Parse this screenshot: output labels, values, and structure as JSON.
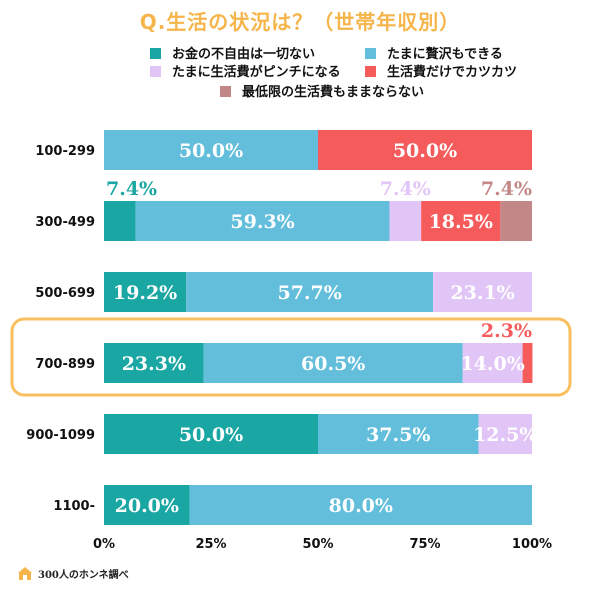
{
  "title": "Q.生活の状況は？（世帯年収別）",
  "footer": {
    "source": "300人のホンネ調べ",
    "logo_icon": "house-book-icon"
  },
  "colors": {
    "s0": "#1aa6a2",
    "s1": "#62bedb",
    "s2": "#e1c5f7",
    "s3": "#f65b5c",
    "s4": "#c28786",
    "highlight": "#f9bf5e"
  },
  "chart_data": {
    "type": "bar",
    "orientation": "horizontal",
    "stacked": true,
    "categories": [
      "100-299",
      "300-499",
      "500-699",
      "700-899",
      "900-1099",
      "1100-"
    ],
    "series": [
      {
        "name": "お金の不自由は一切ない",
        "values": [
          0,
          7.4,
          19.2,
          23.3,
          50.0,
          20.0
        ]
      },
      {
        "name": "たまに贅沢もできる",
        "values": [
          50.0,
          59.3,
          57.7,
          60.5,
          37.5,
          80.0
        ]
      },
      {
        "name": "たまに生活費がピンチになる",
        "values": [
          0,
          7.4,
          23.1,
          14.0,
          12.5,
          0
        ]
      },
      {
        "name": "生活費だけでカツカツ",
        "values": [
          50.0,
          18.5,
          0,
          2.3,
          0,
          0
        ]
      },
      {
        "name": "最低限の生活費もままならない",
        "values": [
          0,
          7.4,
          0,
          0,
          0,
          0
        ]
      }
    ],
    "data_labels": [
      [
        "",
        "50.0%",
        "",
        "50.0%",
        ""
      ],
      [
        "7.4%",
        "59.3%",
        "7.4%",
        "18.5%",
        "7.4%"
      ],
      [
        "19.2%",
        "57.7%",
        "23.1%",
        "",
        ""
      ],
      [
        "23.3%",
        "60.5%",
        "14.0%",
        "2.3%",
        ""
      ],
      [
        "50.0%",
        "37.5%",
        "12.5%",
        "",
        ""
      ],
      [
        "20.0%",
        "80.0%",
        "",
        "",
        ""
      ]
    ],
    "xlim": [
      0,
      100
    ],
    "xticks": [
      "0%",
      "25%",
      "50%",
      "75%",
      "100%"
    ],
    "grid": false,
    "legend_placement": "top-right",
    "highlighted_category": "700-899"
  }
}
